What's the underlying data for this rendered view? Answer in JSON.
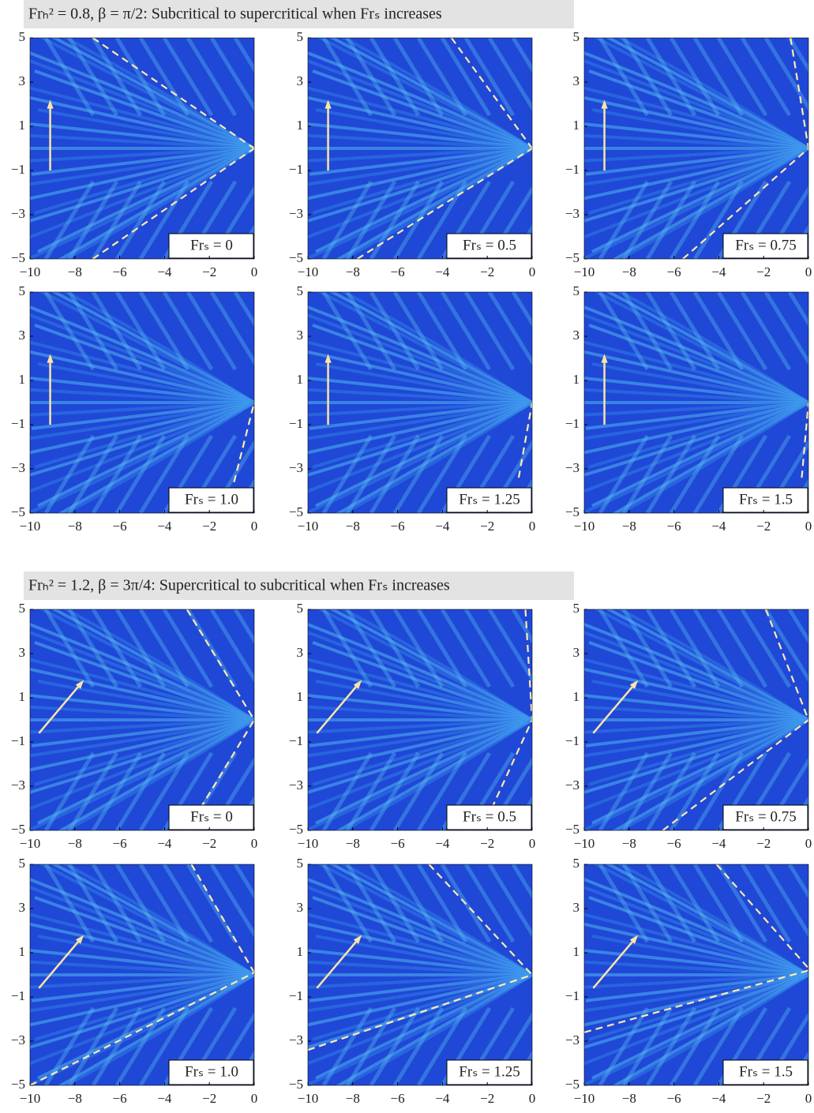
{
  "chart_data": [
    {
      "type": "wave-pattern",
      "title": "Frₕ² = 0.8, β = π/2: Subcritical to supercritical when Frₛ increases",
      "label": "Frₛ = 0",
      "xlim": [
        -10,
        0
      ],
      "ylim": [
        -5,
        5
      ],
      "xticks": [
        {
          "value": -10,
          "label": "−10"
        },
        {
          "value": -8,
          "label": "−8"
        },
        {
          "value": -6,
          "label": "−6"
        },
        {
          "value": -4,
          "label": "−4"
        },
        {
          "value": -2,
          "label": "−2"
        },
        0
      ],
      "yticks": [
        5,
        3,
        1,
        {
          "value": -1,
          "label": "−1"
        },
        {
          "value": -3,
          "label": "−3"
        },
        {
          "value": -5,
          "label": "−5"
        }
      ],
      "line_color": "#ffeab0",
      "lines": [
        {
          "x": [
            -7.2,
            0
          ],
          "y": [
            5,
            0
          ]
        },
        {
          "x": [
            -7.2,
            0
          ],
          "y": [
            -5,
            0
          ]
        }
      ]
    },
    {
      "type": "wave-pattern",
      "label": "Frₛ = 0.5",
      "xlim": [
        -10,
        0
      ],
      "ylim": [
        -5,
        5
      ],
      "xticks": [
        {
          "value": -10,
          "label": "−10"
        },
        {
          "value": -8,
          "label": "−8"
        },
        {
          "value": -6,
          "label": "−6"
        },
        {
          "value": -4,
          "label": "−4"
        },
        {
          "value": -2,
          "label": "−2"
        },
        0
      ],
      "yticks": [
        5,
        3,
        1,
        {
          "value": -1,
          "label": "−1"
        },
        {
          "value": -3,
          "label": "−3"
        },
        {
          "value": -5,
          "label": "−5"
        }
      ],
      "line_color": "#ffeab0",
      "lines": [
        {
          "x": [
            -3.6,
            0
          ],
          "y": [
            5,
            0
          ]
        },
        {
          "x": [
            -7.8,
            0
          ],
          "y": [
            -5,
            0
          ]
        }
      ]
    },
    {
      "type": "wave-pattern",
      "label": "Frₛ = 0.75",
      "xlim": [
        -10,
        0
      ],
      "ylim": [
        -5,
        5
      ],
      "xticks": [
        {
          "value": -10,
          "label": "−10"
        },
        {
          "value": -8,
          "label": "−8"
        },
        {
          "value": -6,
          "label": "−6"
        },
        {
          "value": -4,
          "label": "−4"
        },
        {
          "value": -2,
          "label": "−2"
        },
        0
      ],
      "yticks": [
        5,
        3,
        1,
        {
          "value": -1,
          "label": "−1"
        },
        {
          "value": -3,
          "label": "−3"
        },
        {
          "value": -5,
          "label": "−5"
        }
      ],
      "line_color": "#ffeab0",
      "lines": [
        {
          "x": [
            -0.8,
            0
          ],
          "y": [
            5,
            0
          ]
        },
        {
          "x": [
            -5.6,
            0
          ],
          "y": [
            -5,
            0
          ]
        }
      ]
    },
    {
      "type": "wave-pattern",
      "label": "Frₛ = 1.0",
      "xlim": [
        -10,
        0
      ],
      "ylim": [
        -5,
        5
      ],
      "xticks": [
        {
          "value": -10,
          "label": "−10"
        },
        {
          "value": -8,
          "label": "−8"
        },
        {
          "value": -6,
          "label": "−6"
        },
        {
          "value": -4,
          "label": "−4"
        },
        {
          "value": -2,
          "label": "−2"
        },
        0
      ],
      "yticks": [
        5,
        3,
        1,
        {
          "value": -1,
          "label": "−1"
        },
        {
          "value": -3,
          "label": "−3"
        },
        {
          "value": -5,
          "label": "−5"
        }
      ],
      "line_color": "#ffeab0",
      "lines": [
        {
          "x": [
            -0.9,
            0
          ],
          "y": [
            -3.6,
            0
          ]
        }
      ]
    },
    {
      "type": "wave-pattern",
      "label": "Frₛ = 1.25",
      "xlim": [
        -10,
        0
      ],
      "ylim": [
        -5,
        5
      ],
      "xticks": [
        {
          "value": -10,
          "label": "−10"
        },
        {
          "value": -8,
          "label": "−8"
        },
        {
          "value": -6,
          "label": "−6"
        },
        {
          "value": -4,
          "label": "−4"
        },
        {
          "value": -2,
          "label": "−2"
        },
        0
      ],
      "yticks": [
        5,
        3,
        1,
        {
          "value": -1,
          "label": "−1"
        },
        {
          "value": -3,
          "label": "−3"
        },
        {
          "value": -5,
          "label": "−5"
        }
      ],
      "line_color": "#ffeab0",
      "lines": [
        {
          "x": [
            -0.6,
            0
          ],
          "y": [
            -3.4,
            0
          ]
        }
      ]
    },
    {
      "type": "wave-pattern",
      "label": "Frₛ = 1.5",
      "xlim": [
        -10,
        0
      ],
      "ylim": [
        -5,
        5
      ],
      "xticks": [
        {
          "value": -10,
          "label": "−10"
        },
        {
          "value": -8,
          "label": "−8"
        },
        {
          "value": -6,
          "label": "−6"
        },
        {
          "value": -4,
          "label": "−4"
        },
        {
          "value": -2,
          "label": "−2"
        },
        0
      ],
      "yticks": [
        5,
        3,
        1,
        {
          "value": -1,
          "label": "−1"
        },
        {
          "value": -3,
          "label": "−3"
        },
        {
          "value": -5,
          "label": "−5"
        }
      ],
      "line_color": "#ffeab0",
      "lines": [
        {
          "x": [
            -0.3,
            0
          ],
          "y": [
            -3.4,
            0
          ]
        }
      ]
    },
    {
      "type": "wave-pattern",
      "title": "Frₕ² = 1.2, β = 3π/4: Supercritical to subcritical when Frₛ increases",
      "label": "Frₛ = 0",
      "xlim": [
        -10,
        0
      ],
      "ylim": [
        -5,
        5
      ],
      "xticks": [
        {
          "value": -10,
          "label": "−10"
        },
        {
          "value": -8,
          "label": "−8"
        },
        {
          "value": -6,
          "label": "−6"
        },
        {
          "value": -4,
          "label": "−4"
        },
        {
          "value": -2,
          "label": "−2"
        },
        0
      ],
      "yticks": [
        5,
        3,
        1,
        {
          "value": -1,
          "label": "−1"
        },
        {
          "value": -3,
          "label": "−3"
        },
        {
          "value": -5,
          "label": "−5"
        }
      ],
      "line_color": "#ffeab0",
      "lines": [
        {
          "x": [
            -3,
            0
          ],
          "y": [
            5,
            0
          ]
        },
        {
          "x": [
            -2.4,
            0
          ],
          "y": [
            -4,
            0
          ]
        }
      ]
    },
    {
      "type": "wave-pattern",
      "label": "Frₛ = 0.5",
      "xlim": [
        -10,
        0
      ],
      "ylim": [
        -5,
        5
      ],
      "xticks": [
        {
          "value": -10,
          "label": "−10"
        },
        {
          "value": -8,
          "label": "−8"
        },
        {
          "value": -6,
          "label": "−6"
        },
        {
          "value": -4,
          "label": "−4"
        },
        {
          "value": -2,
          "label": "−2"
        },
        0
      ],
      "yticks": [
        5,
        3,
        1,
        {
          "value": -1,
          "label": "−1"
        },
        {
          "value": -3,
          "label": "−3"
        },
        {
          "value": -5,
          "label": "−5"
        }
      ],
      "line_color": "#ffeab0",
      "lines": [
        {
          "x": [
            -0.3,
            0
          ],
          "y": [
            5,
            0
          ]
        },
        {
          "x": [
            -1.8,
            0
          ],
          "y": [
            -4,
            0
          ]
        }
      ]
    },
    {
      "type": "wave-pattern",
      "label": "Frₛ = 0.75",
      "xlim": [
        -10,
        0
      ],
      "ylim": [
        -5,
        5
      ],
      "xticks": [
        {
          "value": -10,
          "label": "−10"
        },
        {
          "value": -8,
          "label": "−8"
        },
        {
          "value": -6,
          "label": "−6"
        },
        {
          "value": -4,
          "label": "−4"
        },
        {
          "value": -2,
          "label": "−2"
        },
        0
      ],
      "yticks": [
        5,
        3,
        1,
        {
          "value": -1,
          "label": "−1"
        },
        {
          "value": -3,
          "label": "−3"
        },
        {
          "value": -5,
          "label": "−5"
        }
      ],
      "line_color": "#ffeab0",
      "lines": [
        {
          "x": [
            -1.9,
            0
          ],
          "y": [
            5,
            0
          ]
        },
        {
          "x": [
            -6.5,
            0
          ],
          "y": [
            -5,
            0
          ]
        }
      ]
    },
    {
      "type": "wave-pattern",
      "label": "Frₛ = 1.0",
      "xlim": [
        -10,
        0
      ],
      "ylim": [
        -5,
        5
      ],
      "xticks": [
        {
          "value": -10,
          "label": "−10"
        },
        {
          "value": -8,
          "label": "−8"
        },
        {
          "value": -6,
          "label": "−6"
        },
        {
          "value": -4,
          "label": "−4"
        },
        {
          "value": -2,
          "label": "−2"
        },
        0
      ],
      "yticks": [
        5,
        3,
        1,
        {
          "value": -1,
          "label": "−1"
        },
        {
          "value": -3,
          "label": "−3"
        },
        {
          "value": -5,
          "label": "−5"
        }
      ],
      "line_color": "#ffeab0",
      "lines": [
        {
          "x": [
            -2.8,
            0
          ],
          "y": [
            5,
            0.1
          ]
        },
        {
          "x": [
            -10,
            0
          ],
          "y": [
            -5,
            0.1
          ]
        }
      ]
    },
    {
      "type": "wave-pattern",
      "label": "Frₛ = 1.25",
      "xlim": [
        -10,
        0
      ],
      "ylim": [
        -5,
        5
      ],
      "xticks": [
        {
          "value": -10,
          "label": "−10"
        },
        {
          "value": -8,
          "label": "−8"
        },
        {
          "value": -6,
          "label": "−6"
        },
        {
          "value": -4,
          "label": "−4"
        },
        {
          "value": -2,
          "label": "−2"
        },
        0
      ],
      "yticks": [
        5,
        3,
        1,
        {
          "value": -1,
          "label": "−1"
        },
        {
          "value": -3,
          "label": "−3"
        },
        {
          "value": -5,
          "label": "−5"
        }
      ],
      "line_color": "#ffeab0",
      "lines": [
        {
          "x": [
            -4.6,
            0
          ],
          "y": [
            5,
            0
          ]
        },
        {
          "x": [
            -10,
            0
          ],
          "y": [
            -3.4,
            0
          ]
        }
      ]
    },
    {
      "type": "wave-pattern",
      "label": "Frₛ = 1.5",
      "xlim": [
        -10,
        0
      ],
      "ylim": [
        -5,
        5
      ],
      "xticks": [
        {
          "value": -10,
          "label": "−10"
        },
        {
          "value": -8,
          "label": "−8"
        },
        {
          "value": -6,
          "label": "−6"
        },
        {
          "value": -4,
          "label": "−4"
        },
        {
          "value": -2,
          "label": "−2"
        },
        0
      ],
      "yticks": [
        5,
        3,
        1,
        {
          "value": -1,
          "label": "−1"
        },
        {
          "value": -3,
          "label": "−3"
        },
        {
          "value": -5,
          "label": "−5"
        }
      ],
      "line_color": "#ffeab0",
      "lines": [
        {
          "x": [
            -4.1,
            0
          ],
          "y": [
            5,
            0.3
          ]
        },
        {
          "x": [
            -10,
            0
          ],
          "y": [
            -2.6,
            0.2
          ]
        }
      ]
    }
  ]
}
